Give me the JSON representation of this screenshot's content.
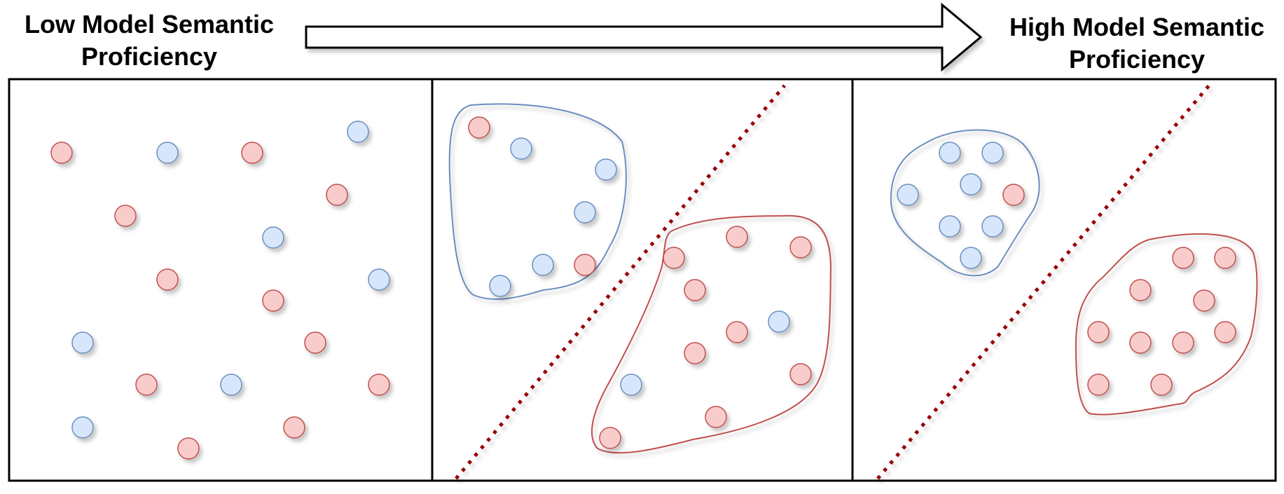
{
  "labels": {
    "low_line1": "Low Model Semantic",
    "low_line2": "Proficiency",
    "high_line1": "High Model Semantic",
    "high_line2": "Proficiency"
  },
  "colors": {
    "red_fill": "#f9cccc",
    "red_stroke": "#c0504d",
    "blue_fill": "#d7e6fb",
    "blue_stroke": "#6c8ebf",
    "divider": "#990000",
    "frame": "#000000"
  }
}
